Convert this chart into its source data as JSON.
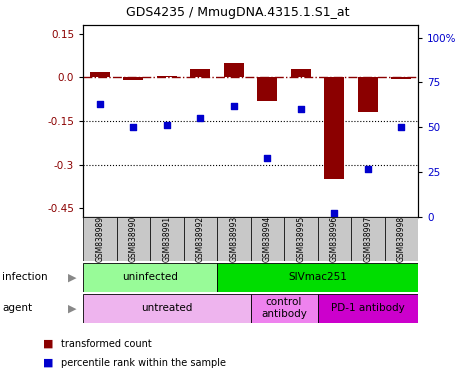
{
  "title": "GDS4235 / MmugDNA.4315.1.S1_at",
  "samples": [
    "GSM838989",
    "GSM838990",
    "GSM838991",
    "GSM838992",
    "GSM838993",
    "GSM838994",
    "GSM838995",
    "GSM838996",
    "GSM838997",
    "GSM838998"
  ],
  "bar_values": [
    0.02,
    -0.01,
    0.005,
    0.03,
    0.05,
    -0.08,
    0.03,
    -0.35,
    -0.12,
    -0.005
  ],
  "dot_values": [
    63,
    50,
    51,
    55,
    62,
    33,
    60,
    2,
    27,
    50
  ],
  "ylim_left": [
    -0.48,
    0.18
  ],
  "ylim_right": [
    0,
    107
  ],
  "yticks_left": [
    0.15,
    0.0,
    -0.15,
    -0.3,
    -0.45
  ],
  "yticks_right": [
    100,
    75,
    50,
    25,
    0
  ],
  "bar_color": "#8B0000",
  "dot_color": "#0000CD",
  "infection_groups": [
    {
      "label": "uninfected",
      "start": 0,
      "end": 4,
      "color": "#98FB98"
    },
    {
      "label": "SIVmac251",
      "start": 4,
      "end": 10,
      "color": "#00DD00"
    }
  ],
  "agent_groups": [
    {
      "label": "untreated",
      "start": 0,
      "end": 5,
      "color": "#EEB4EE"
    },
    {
      "label": "control\nantibody",
      "start": 5,
      "end": 7,
      "color": "#EE82EE"
    },
    {
      "label": "PD-1 antibody",
      "start": 7,
      "end": 10,
      "color": "#CC00CC"
    }
  ],
  "legend_labels": [
    "transformed count",
    "percentile rank within the sample"
  ],
  "infection_label": "infection",
  "agent_label": "agent",
  "sample_bg": "#C8C8C8"
}
